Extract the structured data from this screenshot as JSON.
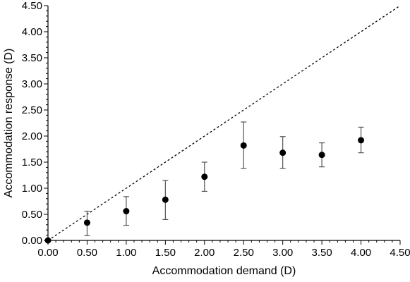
{
  "chart_data": {
    "type": "scatter",
    "title": "",
    "xlabel": "Accommodation demand (D)",
    "ylabel": "Accommodation response (D)",
    "xlim": [
      0,
      4.5
    ],
    "ylim": [
      0,
      4.5
    ],
    "x_ticks": [
      "0.00",
      "0.50",
      "1.00",
      "1.50",
      "2.00",
      "2.50",
      "3.00",
      "3.50",
      "4.00",
      "4.50"
    ],
    "y_ticks": [
      "0.00",
      "0.50",
      "1.00",
      "1.50",
      "2.00",
      "2.50",
      "3.00",
      "3.50",
      "4.00",
      "4.50"
    ],
    "grid": false,
    "reference_line": {
      "style": "dashed",
      "from": [
        0,
        0
      ],
      "to": [
        4.5,
        4.5
      ]
    },
    "series": [
      {
        "x": [
          0.0,
          0.5,
          1.0,
          1.5,
          2.0,
          2.5,
          3.0,
          3.5,
          4.0
        ],
        "y": [
          0.0,
          0.34,
          0.56,
          0.78,
          1.22,
          1.82,
          1.68,
          1.64,
          1.92
        ],
        "error_low": [
          0.0,
          0.09,
          0.29,
          0.4,
          0.94,
          1.38,
          1.38,
          1.41,
          1.68
        ],
        "error_high": [
          0.0,
          0.56,
          0.84,
          1.15,
          1.5,
          2.27,
          1.99,
          1.87,
          2.17
        ]
      }
    ]
  }
}
